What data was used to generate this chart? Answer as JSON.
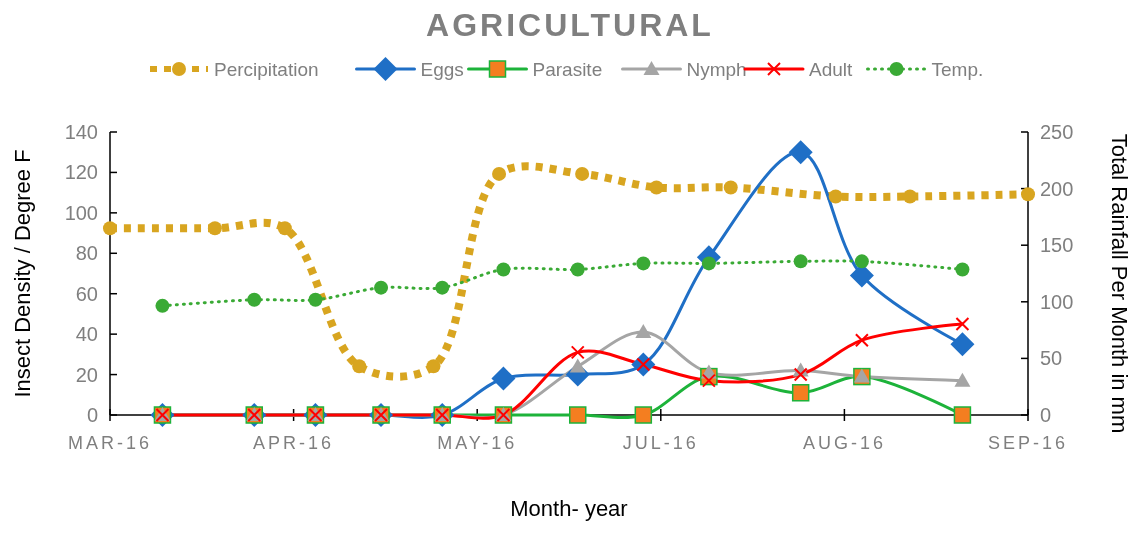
{
  "chart_data": {
    "type": "line",
    "title": "AGRICULTURAL",
    "xlabel": "Month- year",
    "ylabel": "Insect Density / Degree F",
    "y2label": "Total Rainfall Per Month in mm",
    "x": [
      "2016-03-13",
      "2016-04-03",
      "2016-04-17",
      "2016-05-02",
      "2016-05-16",
      "2016-05-30",
      "2016-06-16",
      "2016-07-01",
      "2016-07-16",
      "2016-08-06",
      "2016-08-20",
      "2016-09-12"
    ],
    "xlim": [
      "2016-03-01",
      "2016-09-27"
    ],
    "xticks": [
      {
        "value": "2016-03-01",
        "label": "MAR-16"
      },
      {
        "value": "2016-04-12",
        "label": "APR-16"
      },
      {
        "value": "2016-05-24",
        "label": "MAY-16"
      },
      {
        "value": "2016-07-05",
        "label": "JUL-16"
      },
      {
        "value": "2016-08-16",
        "label": "AUG-16"
      },
      {
        "value": "2016-09-27",
        "label": "SEP-16"
      }
    ],
    "ylim": [
      0,
      140
    ],
    "yticks": [
      0,
      20,
      40,
      60,
      80,
      100,
      120,
      140
    ],
    "y2lim": [
      0,
      250
    ],
    "y2ticks": [
      0,
      50,
      100,
      150,
      200,
      250
    ],
    "grid": false,
    "legend": "top",
    "series": [
      {
        "name": "Percipitation",
        "color": "#d8a520",
        "axis": "y2",
        "marker": "circle",
        "line_style": "dashed",
        "x": [
          "2016-03-01",
          "2016-03-25",
          "2016-04-10",
          "2016-04-27",
          "2016-05-14",
          "2016-05-29",
          "2016-06-17",
          "2016-07-04",
          "2016-07-21",
          "2016-08-14",
          "2016-08-31",
          "2016-09-27"
        ],
        "values": [
          165,
          165,
          165,
          43,
          43,
          213,
          213,
          201,
          201,
          193,
          193,
          195
        ]
      },
      {
        "name": "Eggs",
        "color": "#1f6fc6",
        "marker": "diamond",
        "line_style": "solid",
        "values": [
          0,
          0,
          0,
          0,
          0,
          18,
          20,
          25,
          78,
          130,
          69,
          35
        ]
      },
      {
        "name": "Parasite",
        "color": "#1db33a",
        "marker": "square",
        "line_style": "solid",
        "colors": [
          "#f47e20",
          "#f47e20",
          "#f47e20",
          "#f47e20",
          "#f47e20",
          "#f47e20",
          "#f47e20",
          "#f47e20",
          "#f47e20",
          "#f47e20",
          "#f47e20",
          "#f47e20"
        ],
        "values": [
          0,
          0,
          0,
          0,
          0,
          0,
          0,
          0,
          19,
          11,
          19,
          0
        ]
      },
      {
        "name": "Nymph",
        "color": "#a5a5a5",
        "marker": "triangle",
        "line_style": "solid",
        "values": [
          0,
          0,
          0,
          0,
          0,
          0,
          24,
          41,
          21,
          22,
          19,
          17
        ]
      },
      {
        "name": "Adult",
        "color": "#ff0000",
        "marker": "cross",
        "line_style": "solid",
        "values": [
          0,
          0,
          0,
          0,
          0,
          0,
          31,
          25,
          17,
          20,
          37,
          45
        ]
      },
      {
        "name": "Temp.",
        "color": "#3aaa35",
        "marker": "circle",
        "line_style": "dotted",
        "values": [
          54,
          57,
          57,
          63,
          63,
          72,
          72,
          75,
          75,
          76,
          76,
          72
        ]
      }
    ]
  }
}
